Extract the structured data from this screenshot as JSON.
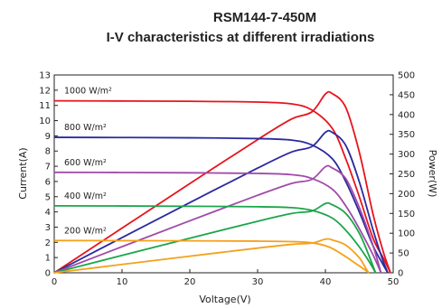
{
  "chart_data": {
    "type": "line",
    "title": "RSM144-7-450M",
    "subtitle": "I-V characteristics at different irradiations",
    "xlabel": "Voltage(V)",
    "ylabel": "Current(A)",
    "y2label": "Power(W)",
    "xlim": [
      0,
      50
    ],
    "ylim": [
      0,
      13
    ],
    "y2lim": [
      0,
      500
    ],
    "xticks": [
      "0",
      "10",
      "20",
      "30",
      "40",
      "50"
    ],
    "yticks": [
      "0",
      "1",
      "2",
      "3",
      "4",
      "5",
      "6",
      "7",
      "8",
      "9",
      "10",
      "11",
      "12",
      "13"
    ],
    "y2ticks": [
      "0",
      "50",
      "100",
      "150",
      "200",
      "250",
      "300",
      "350",
      "400",
      "450",
      "500"
    ],
    "grid": false,
    "series": [
      {
        "name": "1000 W/m²",
        "irradiance": "1000 W/m²",
        "color": "#e8141c",
        "iv": [
          [
            0,
            11.3
          ],
          [
            10,
            11.29
          ],
          [
            20,
            11.27
          ],
          [
            30,
            11.22
          ],
          [
            35,
            11.1
          ],
          [
            38,
            10.7
          ],
          [
            41,
            9.5
          ],
          [
            43,
            7.5
          ],
          [
            45,
            5.0
          ],
          [
            47,
            2.3
          ],
          [
            48.5,
            1.0
          ],
          [
            49.6,
            0
          ]
        ],
        "pv": [
          [
            0,
            0
          ],
          [
            10,
            112.9
          ],
          [
            20,
            225.4
          ],
          [
            30,
            336.6
          ],
          [
            35,
            388.5
          ],
          [
            38,
            406.6
          ],
          [
            40,
            452
          ],
          [
            41,
            453
          ],
          [
            43,
            418
          ],
          [
            45,
            305
          ],
          [
            47,
            150
          ],
          [
            48.5,
            55
          ],
          [
            49.6,
            0
          ]
        ]
      },
      {
        "name": "800 W/m²",
        "irradiance": "800 W/m²",
        "color": "#2a2aa0",
        "iv": [
          [
            0,
            8.9
          ],
          [
            10,
            8.89
          ],
          [
            20,
            8.87
          ],
          [
            30,
            8.82
          ],
          [
            35,
            8.72
          ],
          [
            38,
            8.4
          ],
          [
            41,
            7.5
          ],
          [
            43,
            6.0
          ],
          [
            45,
            4.0
          ],
          [
            47,
            1.8
          ],
          [
            48.3,
            0.7
          ],
          [
            49.2,
            0
          ]
        ],
        "pv": [
          [
            0,
            0
          ],
          [
            10,
            88.9
          ],
          [
            20,
            177.4
          ],
          [
            30,
            264.6
          ],
          [
            35,
            305.2
          ],
          [
            38,
            319
          ],
          [
            40,
            355
          ],
          [
            41,
            355
          ],
          [
            43,
            322
          ],
          [
            45,
            230
          ],
          [
            47,
            110
          ],
          [
            48.3,
            40
          ],
          [
            49.2,
            0
          ]
        ]
      },
      {
        "name": "600 W/m²",
        "irradiance": "600 W/m²",
        "color": "#a04aa8",
        "iv": [
          [
            0,
            6.6
          ],
          [
            10,
            6.59
          ],
          [
            20,
            6.57
          ],
          [
            30,
            6.53
          ],
          [
            35,
            6.45
          ],
          [
            38,
            6.2
          ],
          [
            41,
            5.5
          ],
          [
            43,
            4.4
          ],
          [
            45,
            2.9
          ],
          [
            47,
            1.2
          ],
          [
            48.2,
            0
          ]
        ],
        "pv": [
          [
            0,
            0
          ],
          [
            10,
            65.9
          ],
          [
            20,
            131.4
          ],
          [
            30,
            195.9
          ],
          [
            35,
            225.8
          ],
          [
            38,
            236
          ],
          [
            40,
            268
          ],
          [
            41,
            265
          ],
          [
            43,
            238
          ],
          [
            45,
            165
          ],
          [
            47,
            70
          ],
          [
            48.2,
            0
          ]
        ]
      },
      {
        "name": "400 W/m²",
        "irradiance": "400 W/m²",
        "color": "#1aa64a",
        "iv": [
          [
            0,
            4.4
          ],
          [
            10,
            4.39
          ],
          [
            20,
            4.37
          ],
          [
            30,
            4.34
          ],
          [
            35,
            4.28
          ],
          [
            38,
            4.1
          ],
          [
            41,
            3.6
          ],
          [
            43,
            2.8
          ],
          [
            45,
            1.7
          ],
          [
            46.5,
            0.7
          ],
          [
            47.4,
            0
          ]
        ],
        "pv": [
          [
            0,
            0
          ],
          [
            10,
            43.9
          ],
          [
            20,
            87.4
          ],
          [
            30,
            130.2
          ],
          [
            35,
            149.8
          ],
          [
            38,
            156
          ],
          [
            40,
            175
          ],
          [
            41,
            172
          ],
          [
            43,
            150
          ],
          [
            45,
            100
          ],
          [
            46.5,
            40
          ],
          [
            47.4,
            0
          ]
        ]
      },
      {
        "name": "200 W/m²",
        "irradiance": "200 W/m²",
        "color": "#f5a11a",
        "iv": [
          [
            0,
            2.12
          ],
          [
            10,
            2.11
          ],
          [
            20,
            2.1
          ],
          [
            30,
            2.08
          ],
          [
            35,
            2.05
          ],
          [
            38,
            1.97
          ],
          [
            40.5,
            1.7
          ],
          [
            42.5,
            1.2
          ],
          [
            44.5,
            0.6
          ],
          [
            45.8,
            0.2
          ],
          [
            46.4,
            0
          ]
        ],
        "pv": [
          [
            0,
            0
          ],
          [
            10,
            21.1
          ],
          [
            20,
            42
          ],
          [
            30,
            62.4
          ],
          [
            35,
            71.8
          ],
          [
            38,
            75
          ],
          [
            40,
            85
          ],
          [
            41,
            83
          ],
          [
            43,
            70
          ],
          [
            45,
            38
          ],
          [
            46,
            10
          ],
          [
            46.4,
            0
          ]
        ]
      }
    ]
  }
}
